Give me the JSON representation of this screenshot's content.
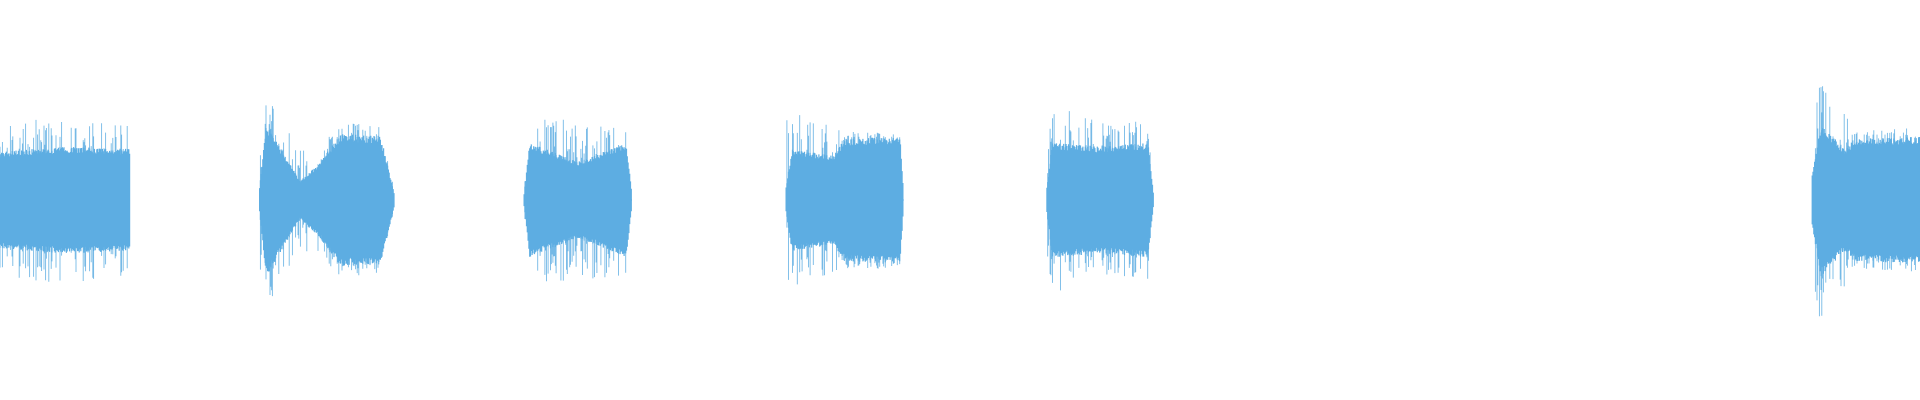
{
  "waveform": {
    "color": "#5dade2"
  }
}
